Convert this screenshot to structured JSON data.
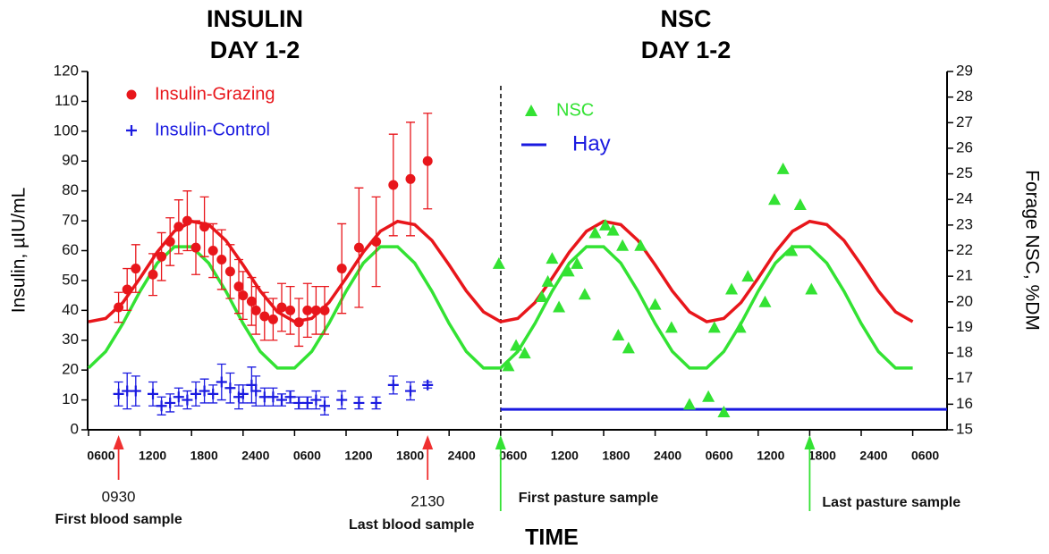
{
  "chart_data": {
    "type": "combo",
    "titles": [
      {
        "line1": "INSULIN",
        "line2": "DAY 1-2"
      },
      {
        "line1": "NSC",
        "line2": "DAY 1-2"
      }
    ],
    "x_label": "TIME",
    "y_label": "Insulin, µIU/mL",
    "y2_label": "Forage NSC, %DM",
    "xlim": [
      0,
      100
    ],
    "xticks": [
      {
        "value": 0,
        "label": "0600"
      },
      {
        "value": 6,
        "label": "1200"
      },
      {
        "value": 12,
        "label": "1800"
      },
      {
        "value": 18,
        "label": "2400"
      },
      {
        "value": 24,
        "label": "0600"
      },
      {
        "value": 30,
        "label": "1200"
      },
      {
        "value": 36,
        "label": "1800"
      },
      {
        "value": 42,
        "label": "2400"
      },
      {
        "value": 48,
        "label": "0600"
      },
      {
        "value": 54,
        "label": "1200"
      },
      {
        "value": 60,
        "label": "1800"
      },
      {
        "value": 66,
        "label": "2400"
      },
      {
        "value": 72,
        "label": "0600"
      },
      {
        "value": 78,
        "label": "1200"
      },
      {
        "value": 84,
        "label": "1800"
      },
      {
        "value": 90,
        "label": "2400"
      },
      {
        "value": 96,
        "label": "0600"
      }
    ],
    "ylim": [
      0,
      120
    ],
    "yticks": [
      0,
      10,
      20,
      30,
      40,
      50,
      60,
      70,
      80,
      90,
      100,
      110,
      120
    ],
    "y2lim": [
      15,
      29
    ],
    "y2ticks": [
      15,
      16,
      17,
      18,
      19,
      20,
      21,
      22,
      23,
      24,
      25,
      26,
      27,
      28,
      29
    ],
    "series": [
      {
        "name": "Insulin-Grazing",
        "type": "scatter",
        "marker": "circle",
        "color": "#e8161b",
        "x": [
          3.5,
          4.5,
          5.5,
          7.5,
          8.5,
          9.5,
          10.5,
          11.5,
          12.5,
          13.5,
          14.5,
          15.5,
          16.5,
          17.5,
          18,
          19,
          19.5,
          20.5,
          21.5,
          22.5,
          23.5,
          24.5,
          25.5,
          26.5,
          27.5,
          29.5,
          31.5,
          33.5,
          35.5,
          37.5,
          39.5
        ],
        "values": [
          41,
          47,
          54,
          52,
          58,
          63,
          68,
          70,
          61,
          68,
          60,
          57,
          53,
          48,
          45,
          43,
          40,
          38,
          37,
          41,
          40,
          36,
          40,
          40,
          40,
          54,
          61,
          63,
          82,
          84,
          90
        ],
        "errors": [
          5,
          7,
          8,
          7,
          8,
          8,
          9,
          10,
          9,
          10,
          9,
          10,
          9,
          9,
          8,
          8,
          8,
          8,
          7,
          8,
          8,
          8,
          9,
          8,
          8,
          15,
          20,
          15,
          17,
          19,
          16
        ]
      },
      {
        "name": "Insulin-Control",
        "type": "scatter",
        "marker": "plus",
        "color": "#1a1ae0",
        "x": [
          3.5,
          4.5,
          5.5,
          7.5,
          8.5,
          9.5,
          10.5,
          11.5,
          12.5,
          13.5,
          14.5,
          15.5,
          16.5,
          17.5,
          18,
          19,
          19.5,
          20.5,
          21.5,
          22.5,
          23.5,
          24.5,
          25.5,
          26.5,
          27.5,
          29.5,
          31.5,
          33.5,
          35.5,
          37.5,
          39.5
        ],
        "values": [
          12,
          13,
          13,
          12,
          8,
          9,
          11,
          10,
          12,
          13,
          12,
          16,
          14,
          11,
          12,
          15,
          13,
          11,
          11,
          10,
          11,
          9,
          9,
          10,
          8,
          10,
          9,
          9,
          15,
          13,
          15
        ],
        "errors": [
          4,
          6,
          5,
          4,
          3,
          3,
          3,
          3,
          4,
          4,
          3,
          6,
          5,
          4,
          3,
          6,
          5,
          3,
          3,
          2,
          2,
          2,
          2,
          3,
          3,
          3,
          2,
          2,
          3,
          3,
          1
        ]
      },
      {
        "name": "NSC",
        "type": "scatter",
        "marker": "triangle",
        "color": "#33e233",
        "axis": "y2",
        "x": [
          47.8,
          48.9,
          49.8,
          50.8,
          52.8,
          53.5,
          54,
          54.8,
          55.9,
          56.9,
          57.8,
          59,
          60.2,
          61.1,
          61.7,
          62.2,
          62.9,
          64.3,
          66,
          67.9,
          70,
          72.2,
          72.9,
          74,
          74.9,
          75.9,
          76.8,
          78.8,
          79.9,
          80.9,
          81.9,
          82.9,
          84.2
        ],
        "values": [
          21.5,
          17.5,
          18.3,
          18,
          20.2,
          20.8,
          21.7,
          19.8,
          21.2,
          21.5,
          20.3,
          22.7,
          23,
          22.8,
          18.7,
          22.2,
          18.2,
          22.2,
          19.9,
          19,
          16,
          16.3,
          19,
          15.7,
          20.5,
          19,
          21,
          20,
          24,
          25.2,
          22,
          23.8,
          20.5
        ]
      },
      {
        "name": "Hay",
        "type": "line",
        "marker": "line",
        "color": "#1a1ae0",
        "axis": "y2",
        "x": [
          48,
          100
        ],
        "values": [
          15.8,
          15.8
        ]
      },
      {
        "type": "line",
        "color": "#e8161b",
        "x": [
          0,
          2,
          4,
          6,
          8,
          10,
          12,
          14,
          16,
          18,
          20,
          22,
          24,
          26,
          28,
          30,
          32,
          34,
          36,
          38,
          40,
          42,
          44,
          46,
          48,
          50,
          52,
          54,
          56,
          58,
          60,
          62,
          64,
          66,
          68,
          70,
          72,
          74,
          76,
          78,
          80,
          82,
          84,
          86,
          88,
          90,
          92,
          94,
          96
        ],
        "values": [
          36.2,
          37.3,
          42.6,
          50.8,
          59.5,
          66.5,
          69.8,
          68.7,
          63.4,
          55.2,
          46.5,
          39.5,
          36.2,
          37.3,
          42.6,
          50.8,
          59.5,
          66.5,
          69.8,
          68.7,
          63.4,
          55.2,
          46.5,
          39.5,
          36.2,
          37.3,
          42.6,
          50.8,
          59.5,
          66.5,
          69.8,
          68.7,
          63.4,
          55.2,
          46.5,
          39.5,
          36.2,
          37.3,
          42.6,
          50.8,
          59.5,
          66.5,
          69.8,
          68.7,
          63.4,
          55.2,
          46.5,
          39.5,
          36.2
        ]
      },
      {
        "type": "line",
        "color": "#33e233",
        "x": [
          0,
          2,
          4,
          6,
          8,
          10,
          12,
          14,
          16,
          18,
          20,
          22,
          24,
          26,
          28,
          30,
          32,
          34,
          36,
          38,
          40,
          42,
          44,
          46,
          48,
          50,
          52,
          54,
          56,
          58,
          60,
          62,
          64,
          66,
          68,
          70,
          72,
          74,
          76,
          78,
          80,
          82,
          84,
          86,
          88,
          90,
          92,
          94,
          96
        ],
        "values": [
          20.7,
          26.2,
          35.6,
          46.4,
          55.8,
          61.3,
          61.3,
          55.8,
          46.4,
          35.6,
          26.2,
          20.7,
          20.7,
          26.2,
          35.6,
          46.4,
          55.8,
          61.3,
          61.3,
          55.8,
          46.4,
          35.6,
          26.2,
          20.7,
          20.7,
          26.2,
          35.6,
          46.4,
          55.8,
          61.3,
          61.3,
          55.8,
          46.4,
          35.6,
          26.2,
          20.7,
          20.7,
          26.2,
          35.6,
          46.4,
          55.8,
          61.3,
          61.3,
          55.8,
          46.4,
          35.6,
          26.2,
          20.7,
          20.7
        ]
      }
    ],
    "annotations": [
      {
        "x": 3.5,
        "time": "0930",
        "text": "First blood sample",
        "color": "#f03030"
      },
      {
        "x": 39.5,
        "time": "2130",
        "text": "Last blood sample",
        "color": "#f03030"
      },
      {
        "x": 48,
        "text": "First pasture sample",
        "color": "#33e233"
      },
      {
        "x": 84,
        "text": "Last pasture sample",
        "color": "#33e233"
      }
    ]
  }
}
